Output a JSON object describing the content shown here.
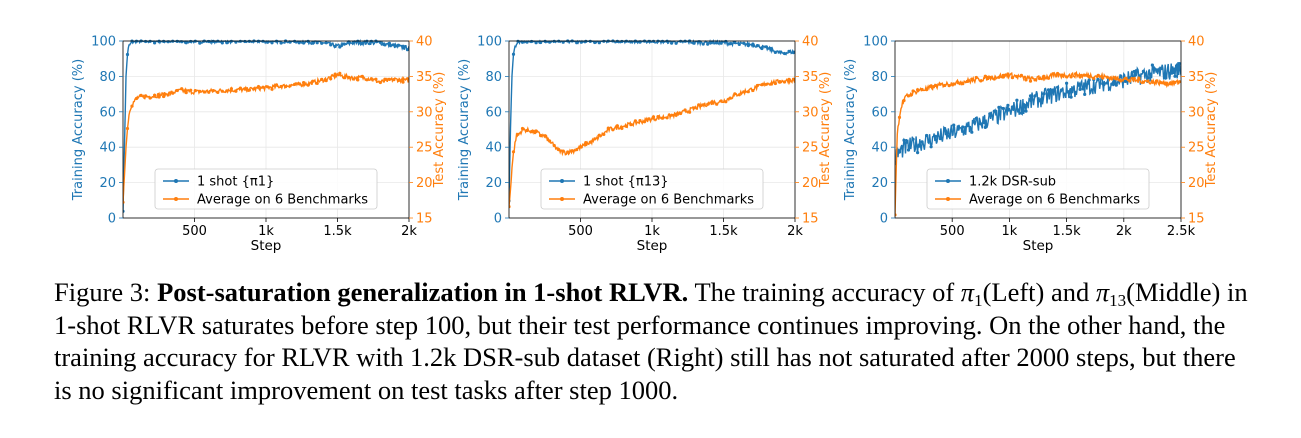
{
  "colors": {
    "training": "#1f77b4",
    "test": "#ff7f0e",
    "axis": "#000000",
    "grid": "#e8e8e8"
  },
  "chart_data": [
    {
      "type": "line",
      "x_axis": {
        "label": "Step",
        "range": [
          0,
          2000
        ],
        "ticks": [
          500,
          1000,
          1500,
          2000
        ],
        "tick_labels": [
          "500",
          "1k",
          "1.5k",
          "2k"
        ]
      },
      "y_left": {
        "label": "Training Accuracy (%)",
        "range": [
          0,
          100
        ],
        "ticks": [
          0,
          20,
          40,
          60,
          80,
          100
        ],
        "tick_labels": [
          "0",
          "20",
          "40",
          "60",
          "80",
          "100"
        ]
      },
      "y_right": {
        "label": "Test Accuracy (%)",
        "range": [
          15,
          40
        ],
        "ticks": [
          15,
          20,
          25,
          30,
          35,
          40
        ],
        "tick_labels": [
          "15",
          "20",
          "25",
          "30",
          "35",
          "40"
        ]
      },
      "grid": true,
      "legend_position": "bottom-center",
      "series": [
        {
          "name": "1 shot {π1}",
          "axis": "left",
          "color": "#1f77b4",
          "noise": 1.2,
          "x": [
            0,
            10,
            20,
            30,
            40,
            60,
            80,
            100,
            200,
            400,
            800,
            1200,
            1400,
            1500,
            1600,
            1800,
            1900,
            2000
          ],
          "y": [
            5,
            40,
            78,
            92,
            97,
            99,
            100,
            100,
            100,
            100,
            100,
            100,
            99,
            97,
            99,
            99,
            97,
            96
          ]
        },
        {
          "name": "Average on 6 Benchmarks",
          "axis": "right",
          "color": "#ff7f0e",
          "noise": 0.3,
          "x": [
            0,
            10,
            20,
            40,
            60,
            100,
            200,
            300,
            400,
            500,
            700,
            900,
            1100,
            1300,
            1400,
            1500,
            1600,
            1700,
            1800,
            1900,
            2000
          ],
          "y": [
            17,
            21,
            25,
            29.5,
            31,
            32,
            32.2,
            32.5,
            33,
            32.8,
            33,
            33.2,
            33.6,
            34,
            34.5,
            35.2,
            34.8,
            34.8,
            34.2,
            34.6,
            34.4
          ]
        }
      ]
    },
    {
      "type": "line",
      "x_axis": {
        "label": "Step",
        "range": [
          0,
          2000
        ],
        "ticks": [
          500,
          1000,
          1500,
          2000
        ],
        "tick_labels": [
          "500",
          "1k",
          "1.5k",
          "2k"
        ]
      },
      "y_left": {
        "label": "Training Accuracy (%)",
        "range": [
          0,
          100
        ],
        "ticks": [
          0,
          20,
          40,
          60,
          80,
          100
        ],
        "tick_labels": [
          "0",
          "20",
          "40",
          "60",
          "80",
          "100"
        ]
      },
      "y_right": {
        "label": "Test Accuracy (%)",
        "range": [
          15,
          40
        ],
        "ticks": [
          15,
          20,
          25,
          30,
          35,
          40
        ],
        "tick_labels": [
          "15",
          "20",
          "25",
          "30",
          "35",
          "40"
        ]
      },
      "grid": true,
      "legend_position": "bottom-center",
      "series": [
        {
          "name": "1 shot {π13}",
          "axis": "left",
          "color": "#1f77b4",
          "noise": 1.0,
          "x": [
            0,
            10,
            20,
            30,
            40,
            60,
            80,
            100,
            300,
            800,
            1200,
            1500,
            1700,
            1800,
            1900,
            2000
          ],
          "y": [
            10,
            50,
            80,
            92,
            97,
            99,
            100,
            100,
            100,
            100,
            99.5,
            99,
            98,
            96,
            93,
            94
          ]
        },
        {
          "name": "Average on 6 Benchmarks",
          "axis": "right",
          "color": "#ff7f0e",
          "noise": 0.3,
          "x": [
            0,
            10,
            20,
            30,
            50,
            100,
            150,
            200,
            250,
            300,
            350,
            400,
            450,
            500,
            600,
            700,
            800,
            900,
            1000,
            1100,
            1200,
            1300,
            1400,
            1500,
            1600,
            1700,
            1800,
            1900,
            2000
          ],
          "y": [
            16.5,
            19,
            22,
            24,
            26.5,
            27.5,
            27.3,
            27,
            26.5,
            25.5,
            24.5,
            24.2,
            24.5,
            25,
            26,
            27.5,
            28,
            28.5,
            29,
            29.3,
            29.8,
            30.5,
            31.2,
            31.5,
            32.5,
            33.2,
            34,
            34.3,
            34.5
          ]
        }
      ]
    },
    {
      "type": "line",
      "x_axis": {
        "label": "Step",
        "range": [
          0,
          2500
        ],
        "ticks": [
          500,
          1000,
          1500,
          2000,
          2500
        ],
        "tick_labels": [
          "500",
          "1k",
          "1.5k",
          "2k",
          "2.5k"
        ]
      },
      "y_left": {
        "label": "Training Accuracy (%)",
        "range": [
          0,
          100
        ],
        "ticks": [
          0,
          20,
          40,
          60,
          80,
          100
        ],
        "tick_labels": [
          "0",
          "20",
          "40",
          "60",
          "80",
          "100"
        ]
      },
      "y_right": {
        "label": "Test Accuracy (%)",
        "range": [
          15,
          40
        ],
        "ticks": [
          15,
          20,
          25,
          30,
          35,
          40
        ],
        "tick_labels": [
          "15",
          "20",
          "25",
          "30",
          "35",
          "40"
        ]
      },
      "grid": true,
      "legend_position": "bottom-center",
      "series": [
        {
          "name": "1.2k DSR-sub",
          "axis": "left",
          "color": "#1f77b4",
          "noise": 5,
          "x": [
            0,
            20,
            50,
            100,
            200,
            400,
            600,
            800,
            1000,
            1200,
            1400,
            1600,
            1800,
            2000,
            2200,
            2400,
            2500
          ],
          "y": [
            32,
            36,
            38,
            40,
            42,
            46,
            50,
            55,
            60,
            66,
            70,
            73,
            76,
            78,
            81,
            83,
            84
          ]
        },
        {
          "name": "Average on 6 Benchmarks",
          "axis": "right",
          "color": "#ff7f0e",
          "noise": 0.35,
          "x": [
            0,
            10,
            20,
            40,
            60,
            100,
            200,
            300,
            400,
            500,
            700,
            900,
            1000,
            1200,
            1400,
            1600,
            1800,
            2000,
            2200,
            2400,
            2500
          ],
          "y": [
            15.5,
            22,
            27,
            29.5,
            31,
            32.2,
            33,
            33.3,
            33.8,
            34,
            34.5,
            35,
            35.2,
            34.6,
            35.1,
            35.2,
            35,
            34.6,
            34.3,
            34,
            34.2
          ]
        }
      ]
    }
  ],
  "caption": {
    "figure_label": "Figure 3: ",
    "bold_title": "Post-saturation generalization in 1-shot RLVR.",
    "part1": " The training accuracy of ",
    "pi": "π",
    "sub1": "1",
    "part2": "(Left) and ",
    "sub13": "13",
    "part3": "(Middle) in 1-shot RLVR saturates before step 100, but their test performance continues improving. On the other hand, the training accuracy for RLVR with 1.2k DSR-sub dataset (Right) still has not saturated after 2000 steps, but there is no significant improvement on test tasks after step 1000."
  }
}
